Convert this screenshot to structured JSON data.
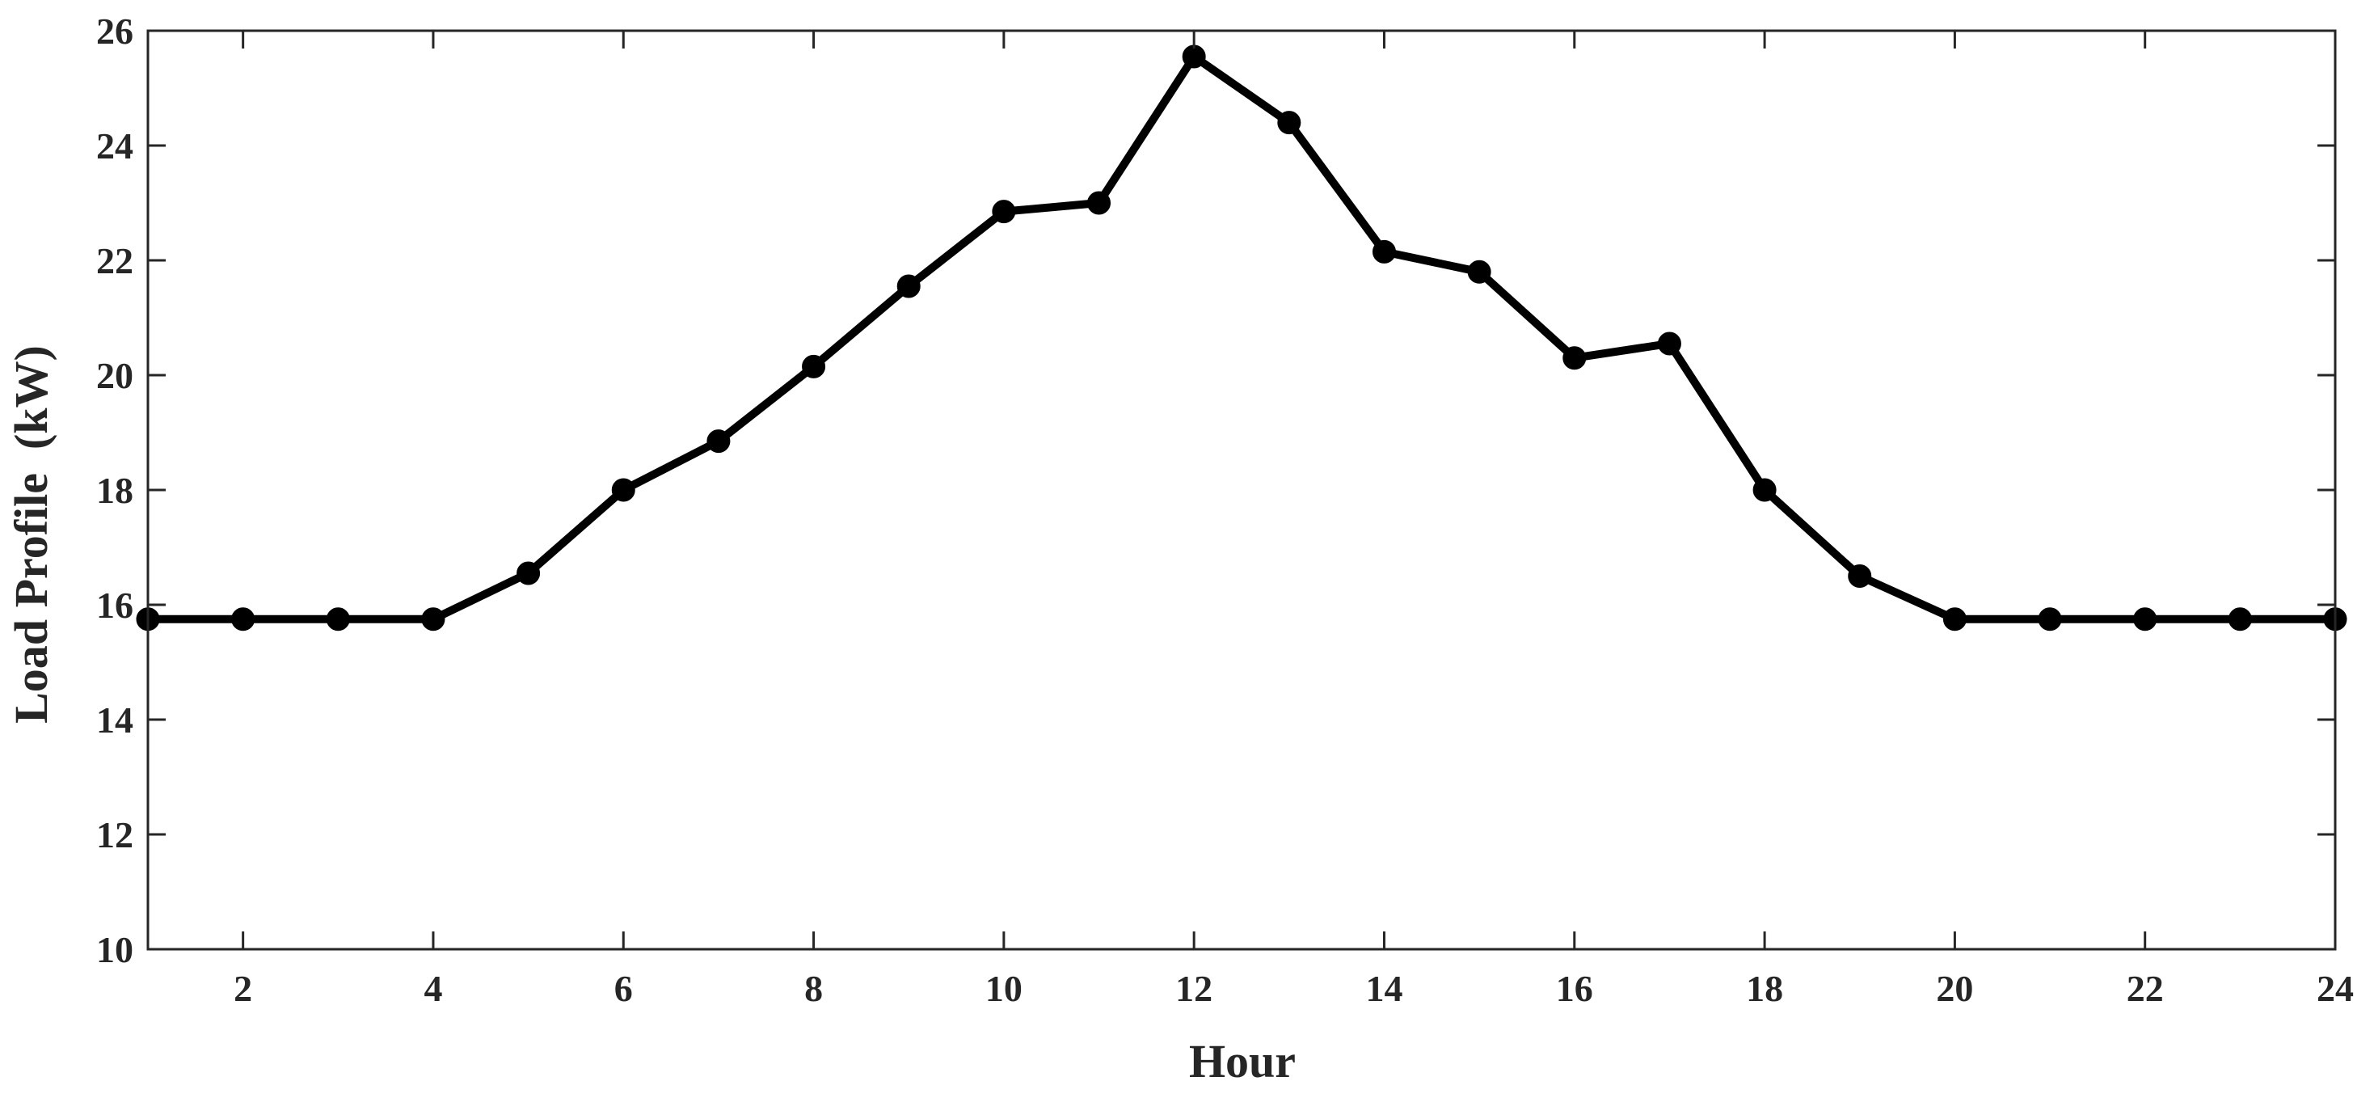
{
  "chart_data": {
    "type": "line",
    "title": "",
    "xlabel": "Hour",
    "ylabel": "Load Profile  (kW)",
    "xlim": [
      1,
      24
    ],
    "ylim": [
      10,
      26
    ],
    "x_ticks": [
      "2",
      "4",
      "6",
      "8",
      "10",
      "12",
      "14",
      "16",
      "18",
      "20",
      "22",
      "24"
    ],
    "y_ticks": [
      "10",
      "12",
      "14",
      "16",
      "18",
      "20",
      "22",
      "24",
      "26"
    ],
    "grid": false,
    "line_color": "#000000",
    "marker": "circle",
    "series": [
      {
        "x": [
          1,
          2,
          3,
          4,
          5,
          6,
          7,
          8,
          9,
          10,
          11,
          12,
          13,
          14,
          15,
          16,
          17,
          18,
          19,
          20,
          21,
          22,
          23,
          24
        ],
        "values": [
          15.75,
          15.75,
          15.75,
          15.75,
          16.55,
          18.0,
          18.85,
          20.15,
          21.55,
          22.85,
          23.0,
          25.55,
          24.4,
          22.15,
          21.8,
          20.3,
          20.55,
          18.0,
          16.5,
          15.75,
          15.75,
          15.75,
          15.75,
          15.75
        ]
      }
    ]
  }
}
